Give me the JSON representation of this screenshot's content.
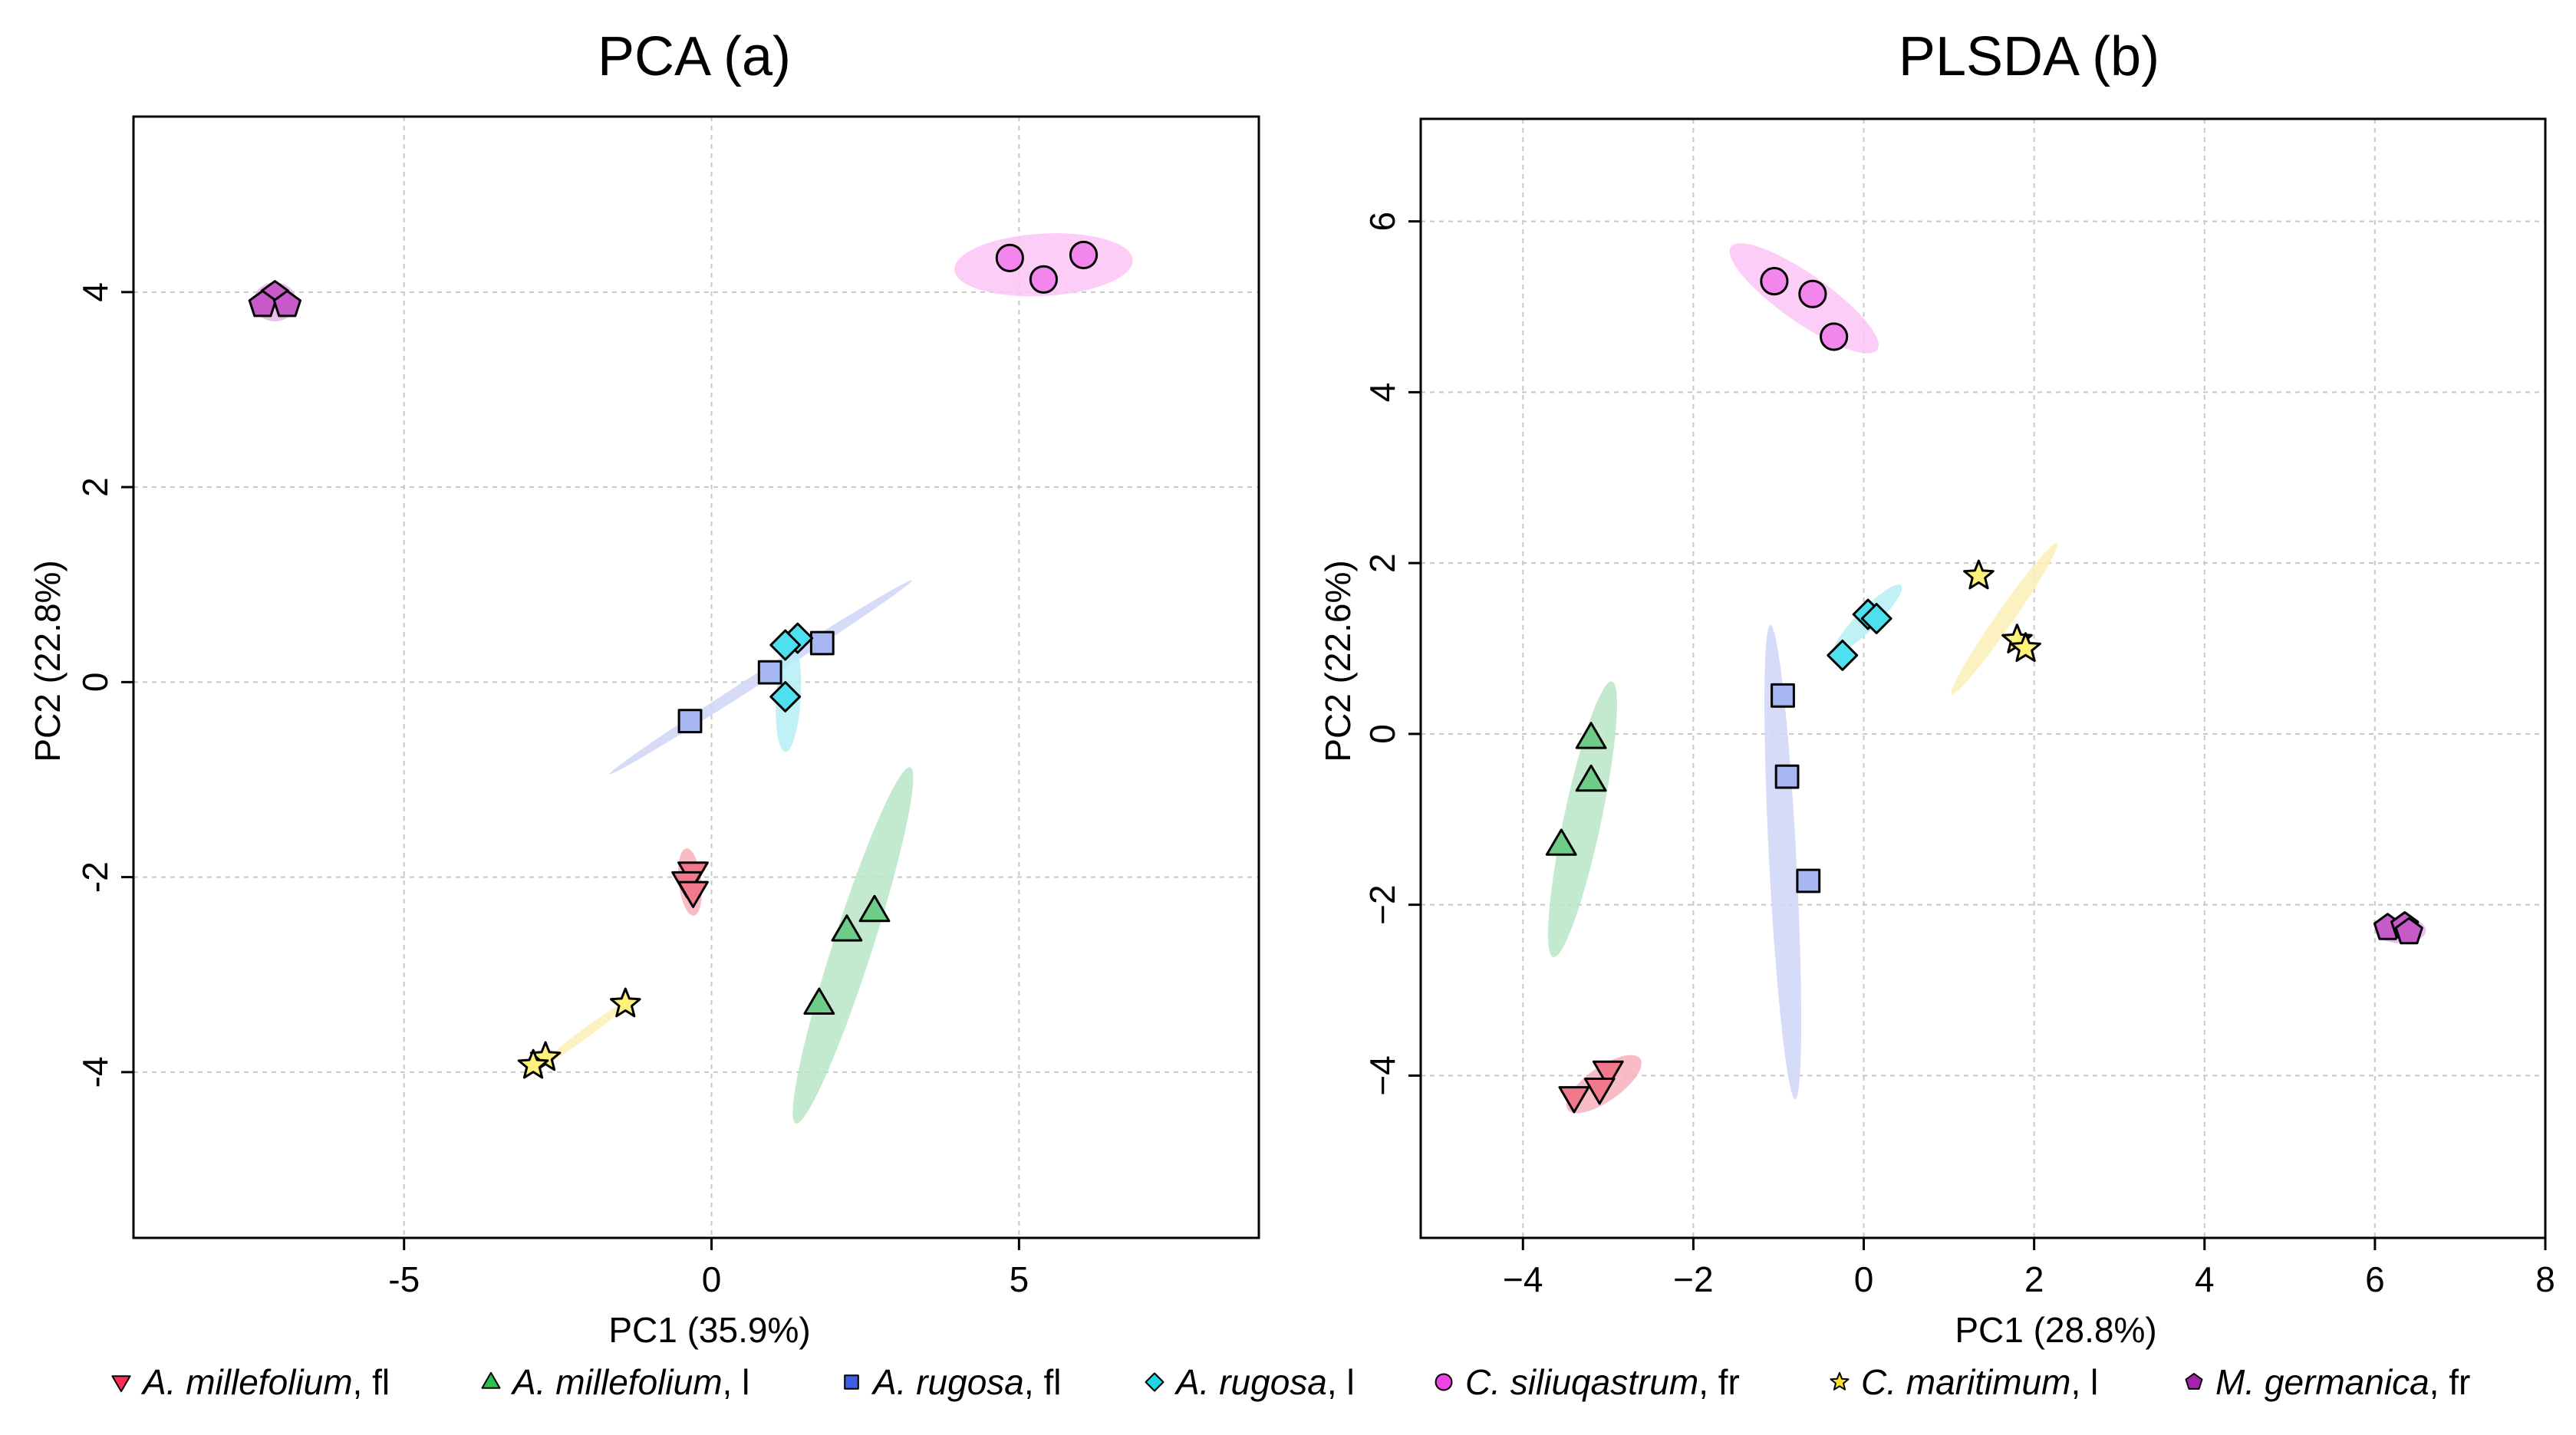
{
  "chart_data": [
    {
      "type": "scatter",
      "title": "PCA (a)",
      "xlabel": "PC1 (35.9%)",
      "ylabel": "PC2 (22.8%)",
      "xlim": [
        -9.4,
        8.9
      ],
      "ylim": [
        -5.7,
        5.8
      ],
      "xticks": [
        -5,
        0,
        5
      ],
      "yticks": [
        -4,
        -2,
        0,
        2,
        4
      ],
      "xtick_labels": [
        "-5",
        "0",
        "5"
      ],
      "ytick_labels": [
        "-4",
        "-2",
        "0",
        "2",
        "4"
      ],
      "grid": true,
      "series": [
        {
          "name": "A. millefolium, fl",
          "points": [
            [
              -0.3,
              -1.95
            ],
            [
              -0.4,
              -2.05
            ],
            [
              -0.3,
              -2.15
            ]
          ]
        },
        {
          "name": "A. millefolium, l",
          "points": [
            [
              2.65,
              -2.35
            ],
            [
              2.2,
              -2.55
            ],
            [
              1.75,
              -3.3
            ]
          ]
        },
        {
          "name": "A. rugosa, fl",
          "points": [
            [
              1.8,
              0.4
            ],
            [
              0.95,
              0.1
            ],
            [
              -0.35,
              -0.4
            ]
          ]
        },
        {
          "name": "A. rugosa, l",
          "points": [
            [
              1.4,
              0.45
            ],
            [
              1.2,
              0.38
            ],
            [
              1.2,
              -0.15
            ]
          ]
        },
        {
          "name": "C. siliuqastrum, fr",
          "points": [
            [
              4.85,
              4.35
            ],
            [
              6.05,
              4.38
            ],
            [
              5.4,
              4.13
            ]
          ]
        },
        {
          "name": "C. maritimum, l",
          "points": [
            [
              -1.4,
              -3.3
            ],
            [
              -2.7,
              -3.85
            ],
            [
              -2.9,
              -3.93
            ]
          ]
        },
        {
          "name": "M. germanica, fr",
          "points": [
            [
              -7.1,
              3.97
            ],
            [
              -7.3,
              3.87
            ],
            [
              -6.9,
              3.87
            ]
          ]
        }
      ]
    },
    {
      "type": "scatter",
      "title": "PLSDA (b)",
      "xlabel": "PC1 (28.8%)",
      "ylabel": "PC2 (22.6%)",
      "xlim": [
        -5.2,
        8.0
      ],
      "ylim": [
        -5.9,
        7.2
      ],
      "xticks": [
        -4,
        -2,
        0,
        2,
        4,
        6,
        8
      ],
      "yticks": [
        -4,
        -2,
        0,
        2,
        4,
        6
      ],
      "xtick_labels": [
        "−4",
        "−2",
        "0",
        "2",
        "4",
        "6",
        "8"
      ],
      "ytick_labels": [
        "−4",
        "−2",
        "0",
        "2",
        "4",
        "6"
      ],
      "grid": true,
      "series": [
        {
          "name": "A. millefolium, fl",
          "points": [
            [
              -3.0,
              -3.95
            ],
            [
              -3.1,
              -4.15
            ],
            [
              -3.4,
              -4.25
            ]
          ]
        },
        {
          "name": "A. millefolium, l",
          "points": [
            [
              -3.2,
              -0.05
            ],
            [
              -3.2,
              -0.55
            ],
            [
              -3.55,
              -1.3
            ]
          ]
        },
        {
          "name": "A. rugosa, fl",
          "points": [
            [
              -0.95,
              0.45
            ],
            [
              -0.9,
              -0.5
            ],
            [
              -0.65,
              -1.72
            ]
          ]
        },
        {
          "name": "A. rugosa, l",
          "points": [
            [
              0.05,
              1.4
            ],
            [
              0.15,
              1.35
            ],
            [
              -0.25,
              0.92
            ]
          ]
        },
        {
          "name": "C. siliuqastrum, fr",
          "points": [
            [
              -1.05,
              5.3
            ],
            [
              -0.6,
              5.15
            ],
            [
              -0.35,
              4.65
            ]
          ]
        },
        {
          "name": "C. maritimum, l",
          "points": [
            [
              1.35,
              1.85
            ],
            [
              1.8,
              1.1
            ],
            [
              1.9,
              1.0
            ]
          ]
        },
        {
          "name": "M. germanica, fr",
          "points": [
            [
              6.15,
              -2.27
            ],
            [
              6.35,
              -2.25
            ],
            [
              6.4,
              -2.32
            ]
          ]
        }
      ]
    }
  ],
  "legend": [
    {
      "species": "A. millefolium",
      "part": ", fl",
      "color": "#ff2d55",
      "marker": "triangle-down"
    },
    {
      "species": "A. millefolium",
      "part": ", l",
      "color": "#2fbf4f",
      "marker": "triangle-up"
    },
    {
      "species": "A. rugosa",
      "part": ", fl",
      "color": "#3d60e0",
      "marker": "square"
    },
    {
      "species": "A. rugosa",
      "part": ", l",
      "color": "#1ed6e6",
      "marker": "diamond"
    },
    {
      "species": "C. siliuqastrum",
      "part": ", fr",
      "color": "#ee44e6",
      "marker": "circle"
    },
    {
      "species": "C. maritimum",
      "part": ", l",
      "color": "#ffe02e",
      "marker": "star"
    },
    {
      "species": "M. germanica",
      "part": ", fr",
      "color": "#a622ae",
      "marker": "pentagon"
    }
  ],
  "point_colors": [
    "#f07a8c",
    "#6dcc88",
    "#a6b6f0",
    "#4fe0ef",
    "#f286ec",
    "#fff27a",
    "#c65ac9"
  ],
  "ellipse_colors": [
    "#f7b0bd",
    "#b8e6c5",
    "#cfd6f6",
    "#b4eff5",
    "#fcc4f4",
    "#fbf0b6",
    "#e8b4ea"
  ]
}
